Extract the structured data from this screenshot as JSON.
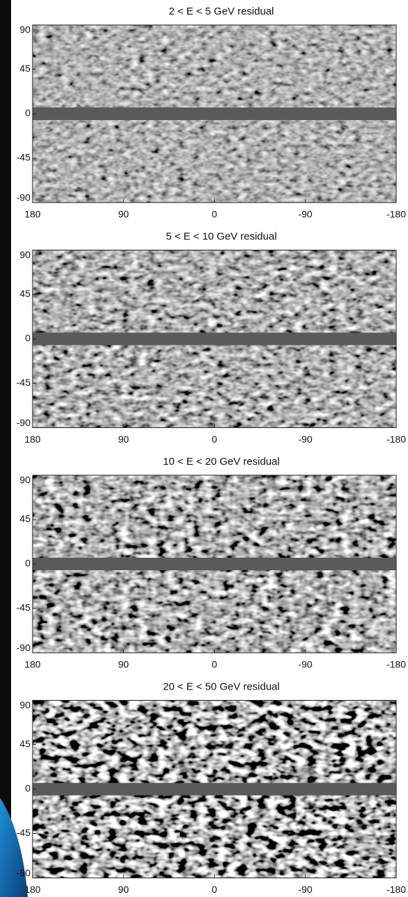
{
  "chart_data": [
    {
      "type": "map",
      "title": "2 < E < 5 GeV residual",
      "xlim": [
        180,
        -180
      ],
      "ylim": [
        -90,
        90
      ],
      "xticks": [
        180,
        90,
        0,
        -90,
        -180
      ],
      "yticks": [
        90,
        45,
        0,
        -45,
        -90
      ]
    },
    {
      "type": "map",
      "title": "5 < E < 10 GeV residual",
      "xlim": [
        180,
        -180
      ],
      "ylim": [
        -90,
        90
      ],
      "xticks": [
        180,
        90,
        0,
        -90,
        -180
      ],
      "yticks": [
        90,
        45,
        0,
        -45,
        -90
      ]
    },
    {
      "type": "map",
      "title": "10 < E < 20 GeV residual",
      "xlim": [
        180,
        -180
      ],
      "ylim": [
        -90,
        90
      ],
      "xticks": [
        180,
        90,
        0,
        -90,
        -180
      ],
      "yticks": [
        90,
        45,
        0,
        -45,
        -90
      ]
    },
    {
      "type": "map",
      "title": "20 < E < 50 GeV residual",
      "xlim": [
        180,
        -180
      ],
      "ylim": [
        -90,
        90
      ],
      "xticks": [
        180,
        90,
        0,
        -90,
        -180
      ],
      "yticks": [
        90,
        45,
        0,
        -45,
        -90
      ]
    }
  ]
}
